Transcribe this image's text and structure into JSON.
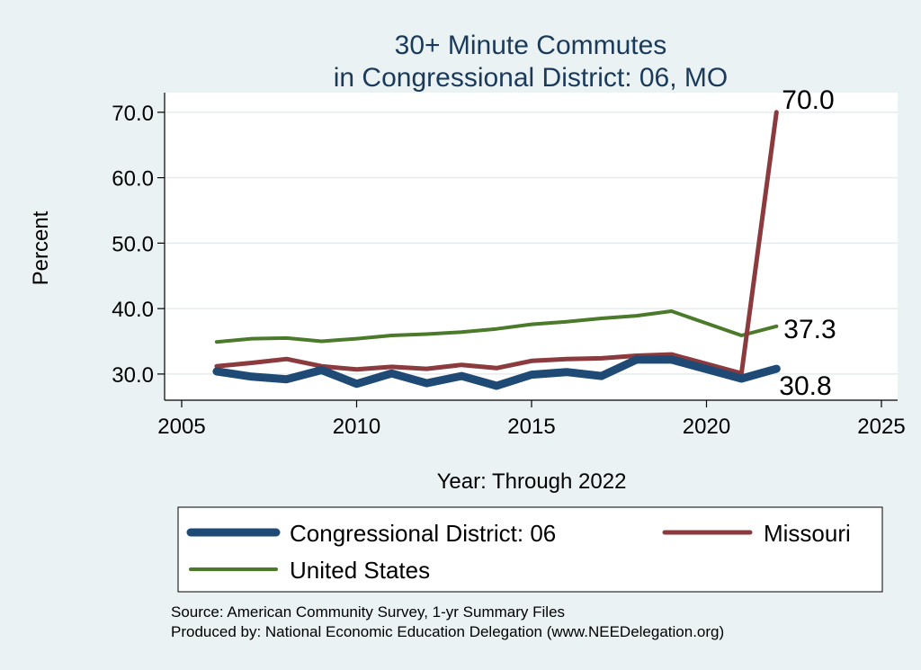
{
  "chart_data": {
    "type": "line",
    "title_lines": [
      "30+ Minute Commutes",
      "in Congressional District:  06, MO"
    ],
    "xlabel": "Year: Through 2022",
    "ylabel": "Percent",
    "xlim": [
      2005,
      2025
    ],
    "ylim": [
      26,
      73
    ],
    "x_ticks": [
      2005,
      2010,
      2015,
      2020,
      2025
    ],
    "y_ticks": [
      30,
      40,
      50,
      60,
      70
    ],
    "y_tick_labels": [
      "30.0",
      "40.0",
      "50.0",
      "60.0",
      "70.0"
    ],
    "grid": true,
    "x": [
      2006,
      2007,
      2008,
      2009,
      2010,
      2011,
      2012,
      2013,
      2014,
      2015,
      2016,
      2017,
      2018,
      2019,
      2021,
      2022
    ],
    "series": [
      {
        "name": "United States",
        "color": "#4a7a2a",
        "line_width": 4,
        "values": [
          34.9,
          35.4,
          35.5,
          35.0,
          35.4,
          35.9,
          36.1,
          36.4,
          36.9,
          37.6,
          38.0,
          38.5,
          38.9,
          39.6,
          35.9,
          37.3
        ],
        "end_label": "37.3"
      },
      {
        "name": "Missouri",
        "color": "#8b3a3e",
        "line_width": 5,
        "values": [
          31.2,
          31.7,
          32.3,
          31.2,
          30.7,
          31.1,
          30.8,
          31.4,
          30.9,
          32.0,
          32.3,
          32.4,
          32.8,
          33.0,
          30.1,
          70.0
        ],
        "end_label": "70.0"
      },
      {
        "name": "Congressional District:  06",
        "color": "#1e4a75",
        "line_width": 9,
        "values": [
          30.4,
          29.6,
          29.2,
          30.6,
          28.5,
          30.1,
          28.6,
          29.7,
          28.2,
          29.9,
          30.3,
          29.7,
          32.2,
          32.2,
          29.3,
          30.8
        ],
        "end_label": "30.8"
      }
    ],
    "legend": {
      "placement": "bottom",
      "entries": [
        {
          "label": "Congressional District:  06",
          "color": "#1e4a75",
          "line_width": 9
        },
        {
          "label": "Missouri",
          "color": "#8b3a3e",
          "line_width": 5
        },
        {
          "label": "United States",
          "color": "#4a7a2a",
          "line_width": 4
        }
      ]
    },
    "source_lines": [
      "Source: American Community Survey, 1-yr Summary Files",
      "Produced by: National Economic Education Delegation (www.NEEDelegation.org)"
    ]
  }
}
